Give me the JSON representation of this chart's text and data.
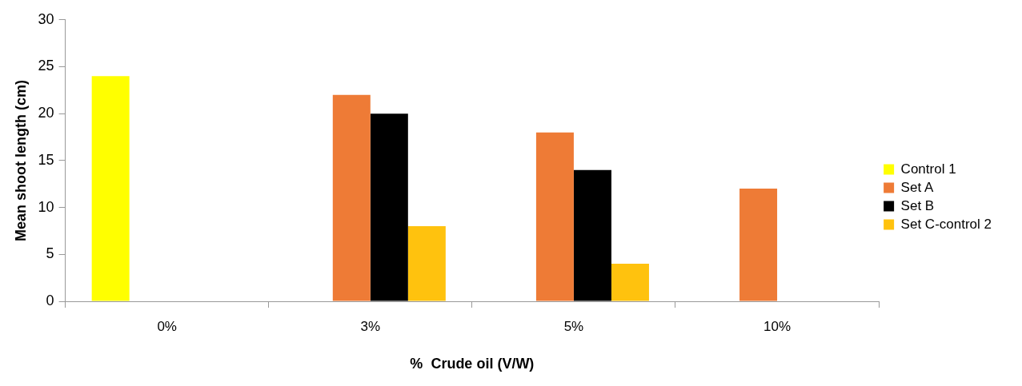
{
  "chart_data": {
    "type": "bar",
    "xlabel": "%  Crude oil (V/W)",
    "ylabel": "Mean shoot length (cm)",
    "categories": [
      "0%",
      "3%",
      "5%",
      "10%"
    ],
    "series": [
      {
        "name": "Control 1",
        "color": "#ffff00",
        "values": [
          24,
          null,
          null,
          null
        ]
      },
      {
        "name": "Set A",
        "color": "#ee7b36",
        "values": [
          null,
          22,
          18,
          12
        ]
      },
      {
        "name": "Set B",
        "color": "#000000",
        "values": [
          null,
          20,
          14,
          null
        ]
      },
      {
        "name": "Set C-control 2",
        "color": "#ffc20e",
        "values": [
          null,
          8,
          4,
          null
        ]
      }
    ],
    "ylim": [
      0,
      30
    ],
    "yticks": [
      0,
      5,
      10,
      15,
      20,
      25,
      30
    ],
    "legend": "right"
  }
}
